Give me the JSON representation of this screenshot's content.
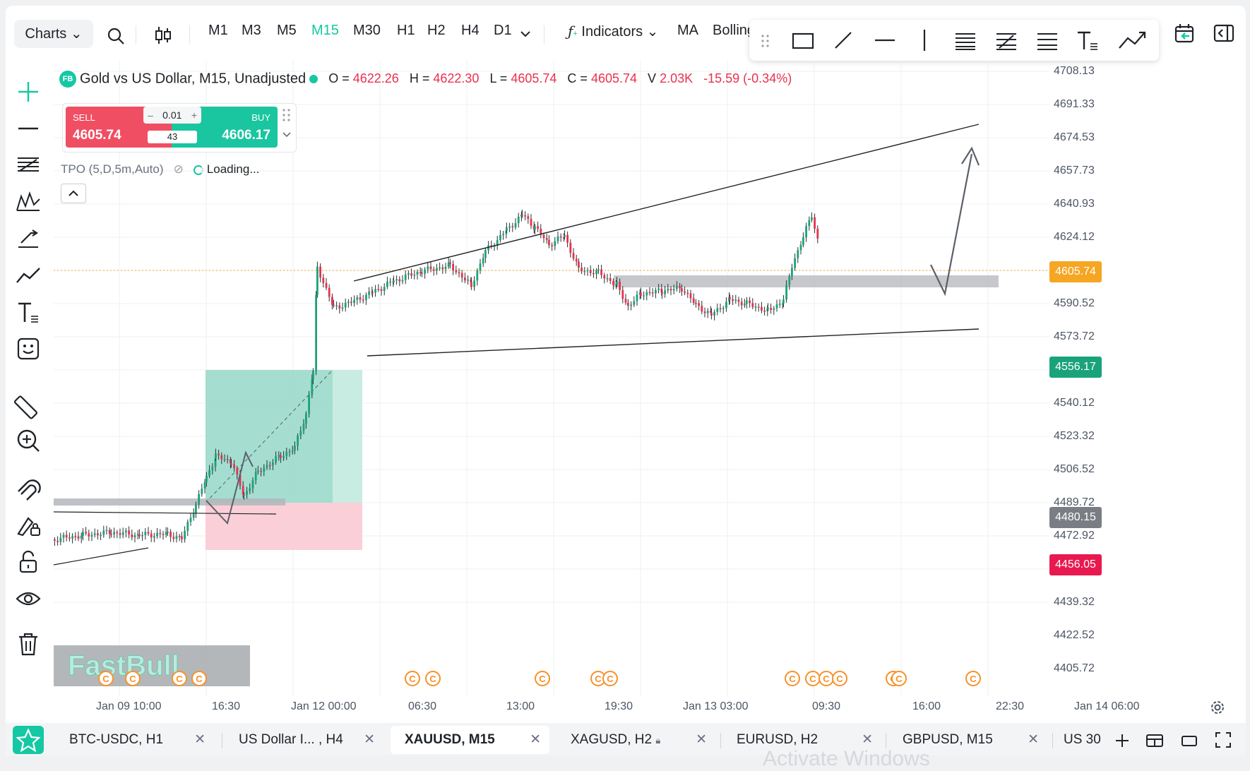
{
  "toolbar": {
    "charts_label": "Charts",
    "timeframes": [
      "M1",
      "M3",
      "M5",
      "M15",
      "M30",
      "H1",
      "H2",
      "H4",
      "D1"
    ],
    "active_timeframe": "M15",
    "indicators_label": "Indicators",
    "ma_label": "MA",
    "bolling_label": "Bolling"
  },
  "legend": {
    "badge": "FB",
    "symbol": "Gold vs US Dollar, M15, Unadjusted",
    "o_label": "O =",
    "o_value": "4622.26",
    "h_label": "H =",
    "h_value": "4622.30",
    "l_label": "L =",
    "l_value": "4605.74",
    "c_label": "C =",
    "c_value": "4605.74",
    "v_label": "V",
    "v_value": "2.03K",
    "change": "-15.59 (-0.34%)"
  },
  "trade": {
    "sell_label": "SELL",
    "sell_price": "4605.74",
    "lot": "0.01",
    "spread": "43",
    "buy_label": "BUY",
    "buy_price": "4606.17"
  },
  "tpo": {
    "label": "TPO (5,D,5m,Auto)",
    "status": "Loading..."
  },
  "price_axis": [
    "4708.13",
    "4691.33",
    "4674.53",
    "4657.73",
    "4640.93",
    "4624.12",
    "4590.52",
    "4573.72",
    "4540.12",
    "4523.32",
    "4506.52",
    "4489.72",
    "4472.92",
    "4439.32",
    "4422.52",
    "4405.72"
  ],
  "price_badges": {
    "current": "4605.74",
    "green": "4556.17",
    "gray": "4480.15",
    "red": "4456.05"
  },
  "time_axis": [
    "Jan 09 10:00",
    "16:30",
    "Jan 12 00:00",
    "06:30",
    "13:00",
    "19:30",
    "Jan 13 03:00",
    "09:30",
    "16:00",
    "22:30",
    "Jan 14 06:00"
  ],
  "event_marker": "C",
  "watermark": "FastBull",
  "activate_text": "Activate Windows",
  "colors": {
    "accent": "#15c8a4",
    "bull": "#1aa37a",
    "bear": "#e8314f"
  },
  "tabs": [
    {
      "label": "BTC-USDC, H1"
    },
    {
      "label": "US Dollar I... , H4"
    },
    {
      "label": "XAUUSD, M15"
    },
    {
      "label": "XAGUSD, H2"
    },
    {
      "label": "EURUSD, H2"
    },
    {
      "label": "GBPUSD, M15"
    },
    {
      "label": "US 30"
    }
  ]
}
